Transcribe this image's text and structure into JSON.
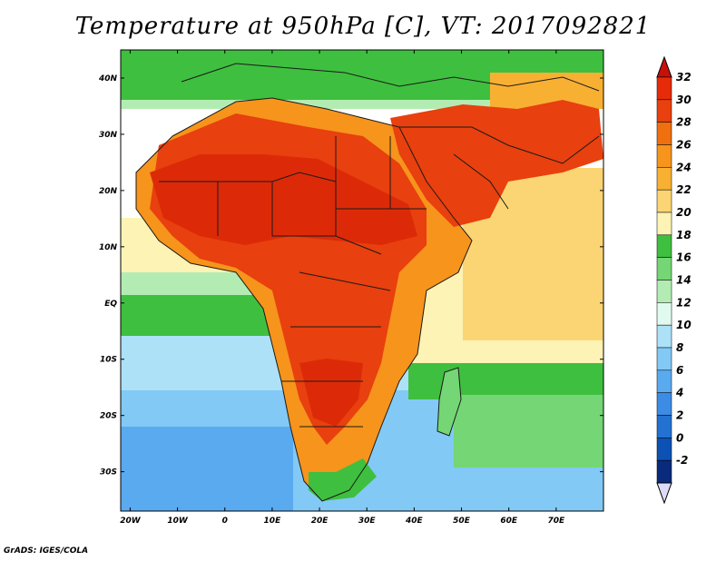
{
  "title": "Temperature at 950hPa [C], VT: 2017092821",
  "credit": "GrADS: IGES/COLA",
  "axes": {
    "lat_labels": [
      "40N",
      "30N",
      "20N",
      "10N",
      "EQ",
      "10S",
      "20S",
      "30S"
    ],
    "lat_values": [
      40,
      30,
      20,
      10,
      0,
      -10,
      -20,
      -30
    ],
    "lon_labels": [
      "20W",
      "10W",
      "0",
      "10E",
      "20E",
      "30E",
      "40E",
      "50E",
      "60E",
      "70E"
    ],
    "lon_values": [
      -20,
      -10,
      0,
      10,
      20,
      30,
      40,
      50,
      60,
      70
    ],
    "lon_range": [
      -22,
      80
    ],
    "lat_range": [
      -37,
      45
    ]
  },
  "colorbar": {
    "levels": [
      "32",
      "30",
      "28",
      "26",
      "24",
      "22",
      "20",
      "18",
      "16",
      "14",
      "12",
      "10",
      "8",
      "6",
      "4",
      "2",
      "0",
      "-2"
    ],
    "colors": [
      "#e62b0a",
      "#e8400e",
      "#f07010",
      "#f6941c",
      "#f8b033",
      "#fbd573",
      "#fcf3b4",
      "#3fbf3f",
      "#74d674",
      "#b3ecb3",
      "#e1faf0",
      "#ade1f8",
      "#82c9f5",
      "#5aaaf0",
      "#3c8ce6",
      "#2372d2",
      "#0c52b4",
      "#0a2a7c"
    ],
    "top_arrow_color": "#c8100a",
    "bottom_arrow_color": "#dcdcf8"
  },
  "field_colors": {
    "ocean_cool": "#82c9f5",
    "ocean_cold": "#5aaaf0",
    "ocean_mild": "#ade1f8",
    "green": "#3fbf3f",
    "light_green": "#74d674",
    "pale_green": "#b3ecb3",
    "pale_yellow": "#fcf3b4",
    "yellow": "#fbd573",
    "amber": "#f8b033",
    "orange": "#f6941c",
    "dark_orange": "#f07010",
    "red": "#e8400e",
    "deep_red": "#dc2a08"
  }
}
